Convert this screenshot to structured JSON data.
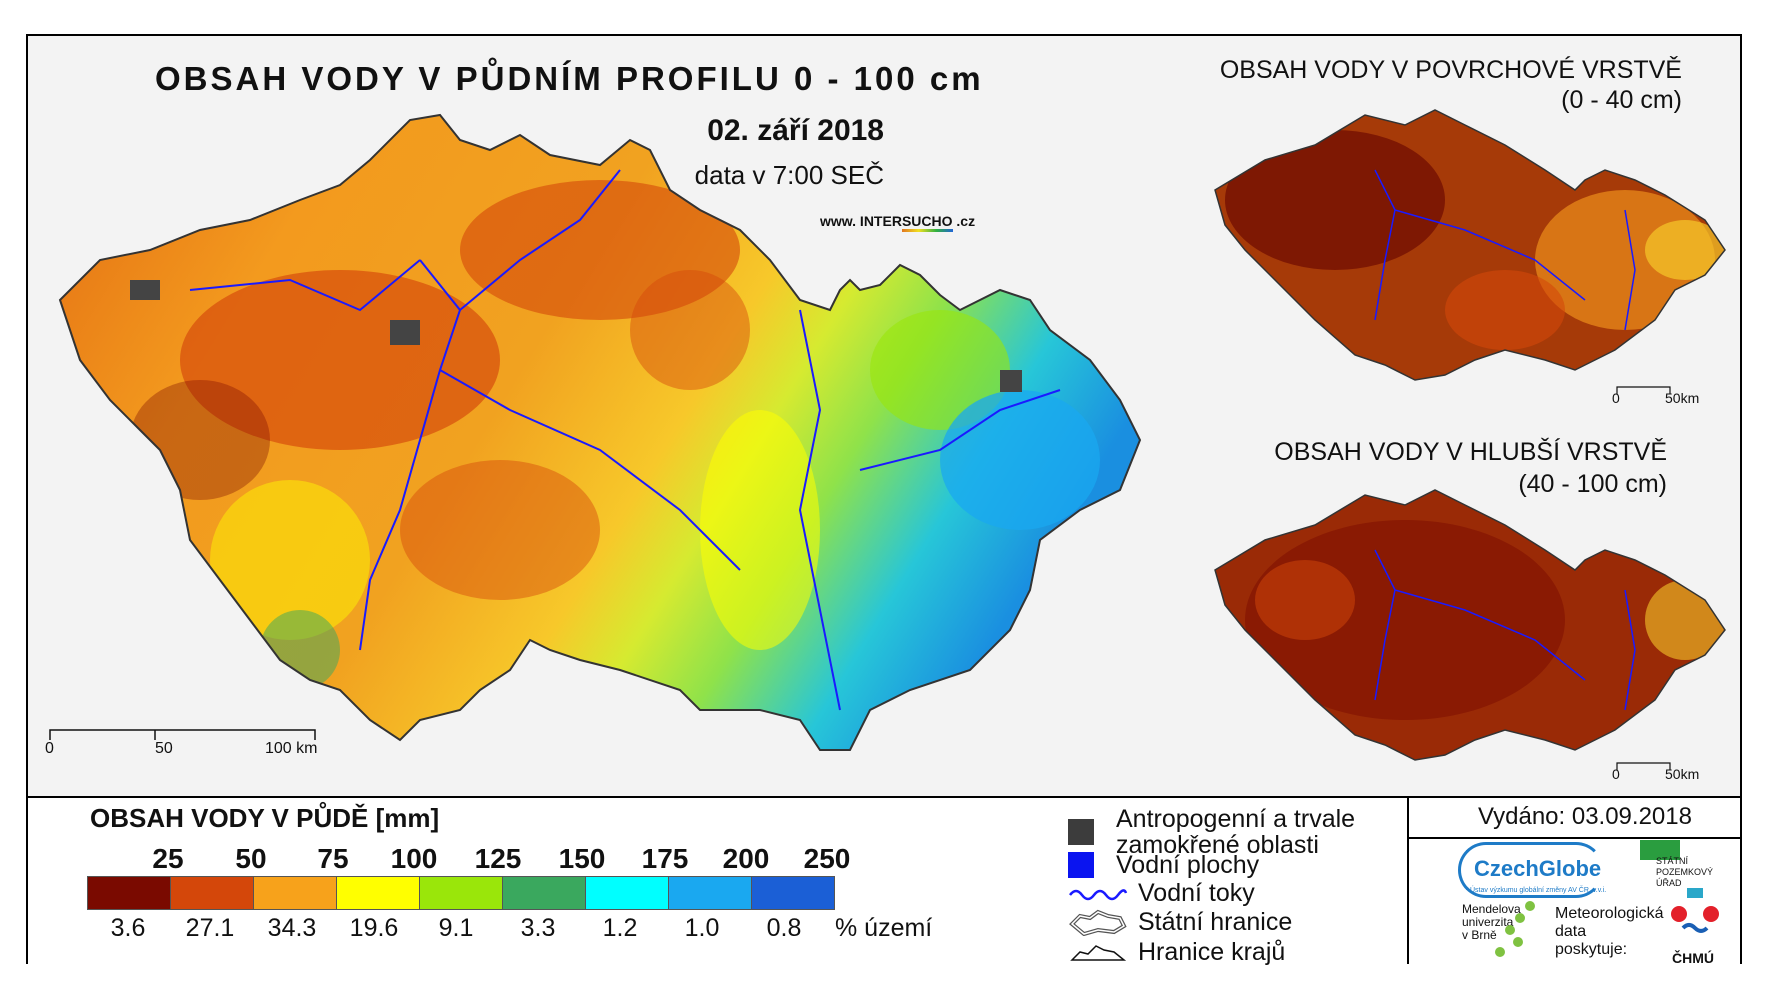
{
  "main": {
    "title": "OBSAH VODY V PŮDNÍM PROFILU 0 - 100 cm",
    "date": "02. září 2018",
    "time": "data v 7:00 SEČ",
    "website_prefix": "www. INTER",
    "website_mid": "SUCHO",
    "website_suffix": " .cz",
    "scale": {
      "s0": "0",
      "s1": "50",
      "s2": "100 km"
    }
  },
  "surface_map": {
    "title": "OBSAH VODY V POVRCHOVÉ VRSTVĚ",
    "subtitle": "(0 - 40 cm)",
    "scale": {
      "s0": "0",
      "s1": "50km"
    }
  },
  "deep_map": {
    "title": "OBSAH VODY V HLUBŠÍ VRSTVĚ",
    "subtitle": "(40 - 100 cm)",
    "scale": {
      "s0": "0",
      "s1": "50km"
    }
  },
  "legend": {
    "title": "OBSAH VODY V PŮDĚ [mm]",
    "thresholds": [
      "25",
      "50",
      "75",
      "100",
      "125",
      "150",
      "175",
      "200",
      "250"
    ],
    "colors": [
      "#7a0a00",
      "#d4470a",
      "#f7a21b",
      "#ffff00",
      "#9ae60a",
      "#3aa85e",
      "#00ffff",
      "#1aa8f0",
      "#1b5fd6"
    ],
    "percents": [
      "3.6",
      "27.1",
      "34.3",
      "19.6",
      "9.1",
      "3.3",
      "1.2",
      "1.0",
      "0.8"
    ],
    "unit": "% území"
  },
  "symbols": {
    "anthro_line1": "Antropogenní a trvale",
    "anthro_line2": "zamokřené oblasti",
    "water_bodies": "Vodní plochy",
    "rivers": "Vodní toky",
    "state_border": "Státní hranice",
    "region_border": "Hranice krajů"
  },
  "issued": "Vydáno: 03.09.2018",
  "logos": {
    "czechglobe": "CzechGlobe",
    "czechglobe_sub": "Ústav výzkumu globální změny AV ČR, v.v.i.",
    "spu": [
      "STÁTNÍ",
      "POZEMKOVÝ",
      "ÚŘAD"
    ],
    "mendelu": [
      "Mendelova",
      "univerzita",
      "v Brně"
    ],
    "met": [
      "Meteorologická",
      "data",
      "poskytuje:"
    ],
    "chmu": "ČHMÚ"
  }
}
